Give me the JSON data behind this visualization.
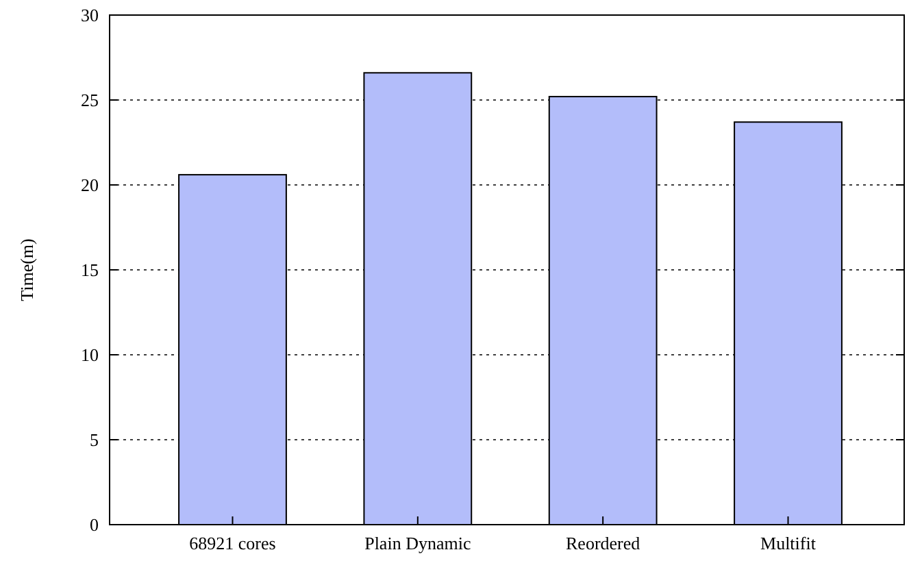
{
  "chart_data": {
    "type": "bar",
    "ylabel": "Time(m)",
    "categories": [
      "68921 cores",
      "Plain Dynamic",
      "Reordered",
      "Multifit"
    ],
    "values": [
      20.6,
      26.6,
      25.2,
      23.7
    ],
    "color": "#b3bdfa",
    "ylim": [
      0,
      30
    ],
    "yticks": [
      0,
      5,
      10,
      15,
      20,
      25,
      30
    ],
    "grid": "y"
  }
}
